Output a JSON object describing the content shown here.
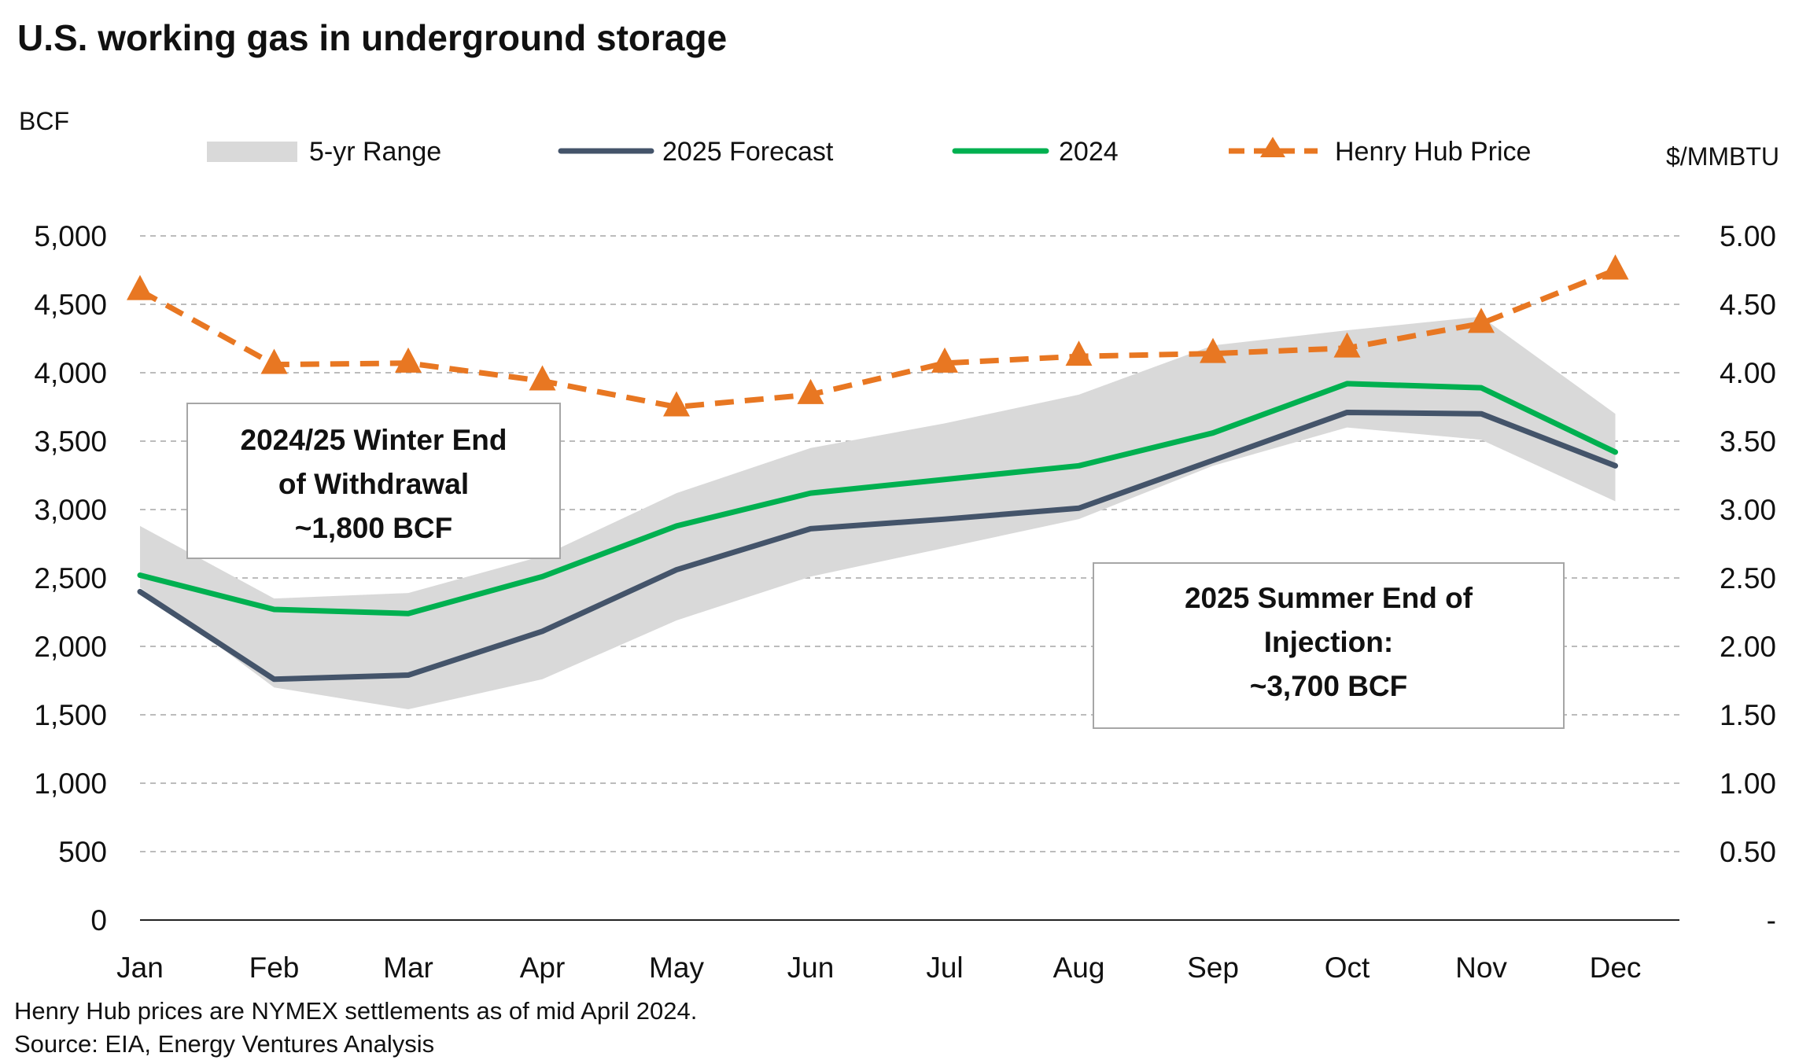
{
  "title": "U.S. working gas in underground storage",
  "left_axis_title": "BCF",
  "right_axis_title": "$/MMBTU",
  "legend": {
    "range": "5-yr Range",
    "forecast": "2025 Forecast",
    "y2024": "2024",
    "price": "Henry Hub Price"
  },
  "annotations": {
    "winter": [
      "2024/25 Winter End",
      "of Withdrawal",
      "~1,800 BCF"
    ],
    "summer": [
      "2025 Summer End of",
      "Injection:",
      "~3,700 BCF"
    ]
  },
  "footnotes": {
    "note": "Henry Hub prices are NYMEX settlements as of mid April 2024.",
    "source": "Source: EIA, Energy Ventures Analysis"
  },
  "colors": {
    "range": "#d9d9d9",
    "forecast": "#44546a",
    "y2024": "#00b050",
    "price": "#e87722",
    "grid": "#a6a6a6"
  },
  "chart_data": {
    "type": "line",
    "categories": [
      "Jan",
      "Feb",
      "Mar",
      "Apr",
      "May",
      "Jun",
      "Jul",
      "Aug",
      "Sep",
      "Oct",
      "Nov",
      "Dec"
    ],
    "y_left": {
      "label": "BCF",
      "ylim": [
        0,
        5000
      ],
      "ticks": [
        0,
        500,
        1000,
        1500,
        2000,
        2500,
        3000,
        3500,
        4000,
        4500,
        5000
      ],
      "tick_labels": [
        "0",
        "500",
        "1,000",
        "1,500",
        "2,000",
        "2,500",
        "3,000",
        "3,500",
        "4,000",
        "4,500",
        "5,000"
      ]
    },
    "y_right": {
      "label": "$/MMBTU",
      "ylim": [
        0,
        5
      ],
      "ticks": [
        0,
        0.5,
        1,
        1.5,
        2,
        2.5,
        3,
        3.5,
        4,
        4.5,
        5
      ],
      "tick_labels": [
        "-",
        "0.50",
        "1.00",
        "1.50",
        "2.00",
        "2.50",
        "3.00",
        "3.50",
        "4.00",
        "4.50",
        "5.00"
      ]
    },
    "range_band": {
      "name": "5-yr Range",
      "low": [
        2430,
        1700,
        1540,
        1760,
        2190,
        2510,
        2720,
        2930,
        3320,
        3600,
        3510,
        3060
      ],
      "high": [
        2880,
        2350,
        2390,
        2660,
        3120,
        3450,
        3630,
        3840,
        4200,
        4310,
        4410,
        3700
      ]
    },
    "series": [
      {
        "name": "2025 Forecast",
        "axis": "left",
        "values": [
          2400,
          1760,
          1790,
          2110,
          2560,
          2860,
          2930,
          3010,
          3360,
          3710,
          3700,
          3320
        ]
      },
      {
        "name": "2024",
        "axis": "left",
        "values": [
          2520,
          2270,
          2240,
          2510,
          2880,
          3120,
          3220,
          3320,
          3560,
          3920,
          3890,
          3420
        ]
      },
      {
        "name": "Henry Hub Price",
        "axis": "right",
        "values": [
          4.6,
          4.06,
          4.07,
          3.94,
          3.75,
          3.84,
          4.07,
          4.12,
          4.14,
          4.18,
          4.36,
          4.75
        ]
      }
    ],
    "grid": true,
    "legend_position": "top"
  }
}
